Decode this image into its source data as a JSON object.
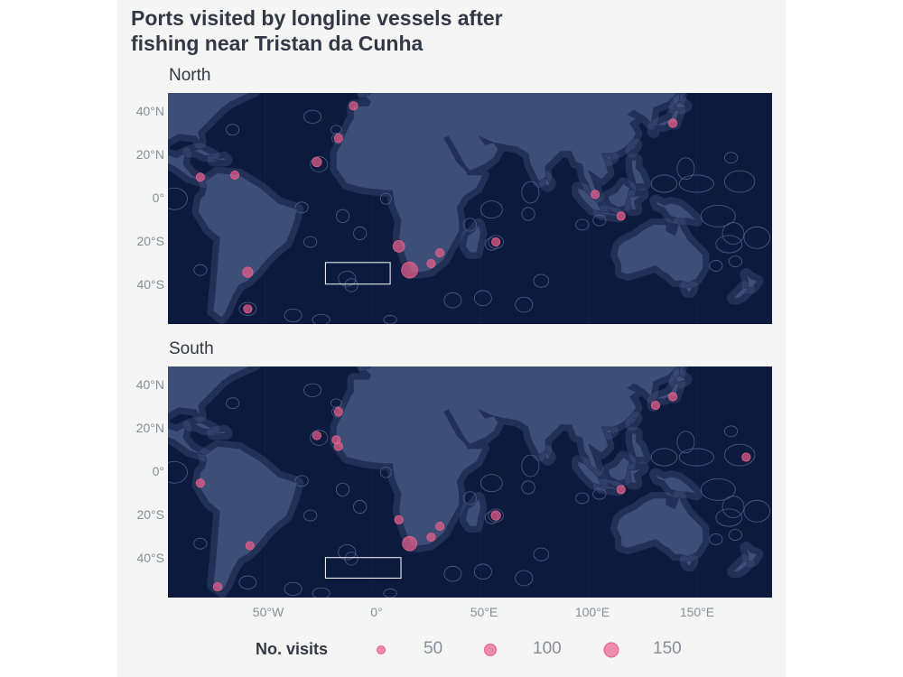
{
  "title_line1": "Ports visited by longline vessels after",
  "title_line2": "fishing near Tristan da Cunha",
  "colors": {
    "ocean": "#0c1a3d",
    "land": "#3d4e77",
    "border": "#22305a",
    "eez": "#4e5d86",
    "port": "#ea5f8a",
    "box": "#ffffff"
  },
  "y_ticks": [
    "40°N",
    "20°N",
    "0°",
    "20°S",
    "40°S"
  ],
  "x_ticks": [
    "50°W",
    "0°",
    "50°E",
    "100°E",
    "150°E"
  ],
  "map_extent": {
    "lon": [
      -95,
      185
    ],
    "lat": [
      -58,
      49
    ]
  },
  "facets": [
    {
      "label": "North",
      "fishing_box": {
        "lon": [
          -22,
          8
        ],
        "lat": [
          -39.5,
          -29.5
        ]
      },
      "ports": [
        {
          "lon": 17,
          "lat": -33,
          "visits": 150
        },
        {
          "lon": 12,
          "lat": -22,
          "visits": 60
        },
        {
          "lon": -58,
          "lat": -34,
          "visits": 40
        },
        {
          "lon": -26,
          "lat": 17,
          "visits": 30
        },
        {
          "lon": -16,
          "lat": 28,
          "visits": 20
        },
        {
          "lon": -9,
          "lat": 43,
          "visits": 20
        },
        {
          "lon": -80,
          "lat": 10,
          "visits": 20
        },
        {
          "lon": -64,
          "lat": 11,
          "visits": 20
        },
        {
          "lon": 57,
          "lat": -20,
          "visits": 20
        },
        {
          "lon": 31,
          "lat": -25,
          "visits": 20
        },
        {
          "lon": 27,
          "lat": -30,
          "visits": 20
        },
        {
          "lon": 103,
          "lat": 2,
          "visits": 20
        },
        {
          "lon": 115,
          "lat": -8,
          "visits": 20
        },
        {
          "lon": 139,
          "lat": 35,
          "visits": 20
        },
        {
          "lon": -58,
          "lat": -51,
          "visits": 20
        }
      ]
    },
    {
      "label": "South",
      "fishing_box": {
        "lon": [
          -22,
          13
        ],
        "lat": [
          -49,
          -39.5
        ]
      },
      "ports": [
        {
          "lon": 17,
          "lat": -33,
          "visits": 110
        },
        {
          "lon": 57,
          "lat": -20,
          "visits": 30
        },
        {
          "lon": 12,
          "lat": -22,
          "visits": 20
        },
        {
          "lon": 31,
          "lat": -25,
          "visits": 20
        },
        {
          "lon": 27,
          "lat": -30,
          "visits": 20
        },
        {
          "lon": -16,
          "lat": 28,
          "visits": 20
        },
        {
          "lon": -26,
          "lat": 17,
          "visits": 20
        },
        {
          "lon": -17,
          "lat": 15,
          "visits": 20
        },
        {
          "lon": -16,
          "lat": 12,
          "visits": 20
        },
        {
          "lon": -57,
          "lat": -34,
          "visits": 20
        },
        {
          "lon": -80,
          "lat": -5,
          "visits": 20
        },
        {
          "lon": -72,
          "lat": -53,
          "visits": 20
        },
        {
          "lon": 115,
          "lat": -8,
          "visits": 20
        },
        {
          "lon": 131,
          "lat": 31,
          "visits": 20
        },
        {
          "lon": 139,
          "lat": 35,
          "visits": 20
        },
        {
          "lon": 173,
          "lat": 7,
          "visits": 20
        }
      ]
    }
  ],
  "legend": {
    "title": "No. visits",
    "items": [
      {
        "value": 50,
        "label": "50"
      },
      {
        "value": 100,
        "label": "100"
      },
      {
        "value": 150,
        "label": "150"
      }
    ]
  }
}
